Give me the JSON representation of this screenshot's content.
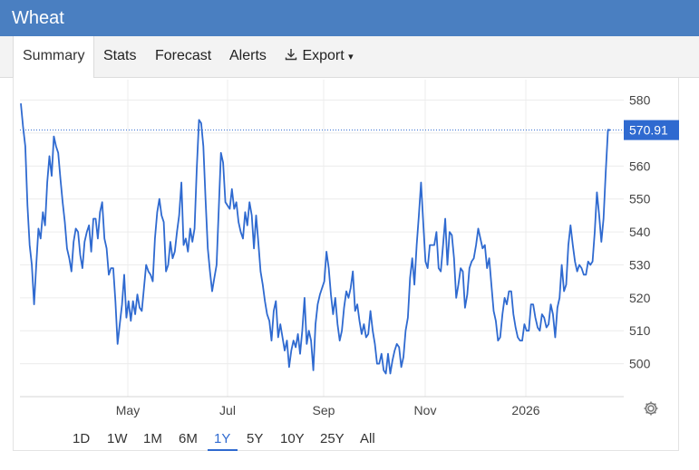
{
  "title": "Wheat",
  "tabs": [
    {
      "label": "Summary",
      "active": true
    },
    {
      "label": "Stats"
    },
    {
      "label": "Forecast"
    },
    {
      "label": "Alerts"
    },
    {
      "label": "Export",
      "icon": "download-icon",
      "caret": "▾"
    }
  ],
  "ranges": [
    "1D",
    "1W",
    "1M",
    "6M",
    "1Y",
    "5Y",
    "10Y",
    "25Y",
    "All"
  ],
  "selected_range": "1Y",
  "colors": {
    "accent": "#4a7fc1",
    "line": "#2f6ad0",
    "badge": "#2f6ad0"
  },
  "chart_data": {
    "type": "line",
    "x_ticks": [
      "May",
      "Jul",
      "Sep",
      "Nov",
      "2026"
    ],
    "y_ticks": [
      500,
      510,
      520,
      530,
      540,
      550,
      560,
      570,
      580
    ],
    "ylim": [
      490,
      584
    ],
    "current_value": "570.91",
    "grid": true,
    "series": [
      {
        "values": [
          579,
          572,
          566,
          548,
          536,
          530,
          518,
          530,
          541,
          538,
          546,
          542,
          555,
          563,
          557,
          569,
          566,
          564,
          556,
          549,
          543,
          535,
          532,
          528,
          537,
          541,
          540,
          533,
          529,
          537,
          540,
          542,
          534,
          544,
          544,
          538,
          546,
          549,
          538,
          535,
          527,
          529,
          529,
          519,
          506,
          512,
          518,
          527,
          514,
          519,
          513,
          519,
          515,
          521,
          517,
          516,
          523,
          530,
          528,
          527,
          525,
          538,
          546,
          550,
          545,
          543,
          528,
          530,
          537,
          532,
          534,
          540,
          545,
          555,
          536,
          538,
          534,
          541,
          537,
          541,
          559,
          574,
          573,
          566,
          550,
          535,
          528,
          522,
          526,
          530,
          547,
          564,
          561,
          549,
          548,
          547,
          553,
          547,
          549,
          543,
          540,
          538,
          546,
          542,
          549,
          545,
          535,
          545,
          537,
          528,
          524,
          519,
          515,
          513,
          507,
          516,
          519,
          508,
          512,
          508,
          504,
          507,
          499,
          504,
          507,
          505,
          509,
          503,
          510,
          520,
          506,
          510,
          507,
          498,
          512,
          518,
          521,
          523,
          525,
          534,
          529,
          521,
          515,
          520,
          512,
          507,
          510,
          517,
          522,
          520,
          523,
          528,
          516,
          518,
          513,
          509,
          512,
          508,
          509,
          516,
          510,
          506,
          500,
          500,
          503,
          498,
          497,
          503,
          497,
          501,
          504,
          506,
          505,
          499,
          502,
          510,
          514,
          526,
          532,
          524,
          536,
          545,
          555,
          543,
          531,
          529,
          536,
          536,
          536,
          540,
          529,
          528,
          536,
          544,
          530,
          540,
          539,
          532,
          520,
          524,
          529,
          528,
          517,
          521,
          529,
          531,
          532,
          536,
          541,
          538,
          535,
          536,
          529,
          532,
          524,
          516,
          513,
          507,
          508,
          515,
          520,
          518,
          522,
          522,
          515,
          511,
          508,
          507,
          507,
          512,
          510,
          510,
          518,
          518,
          514,
          511,
          510,
          515,
          514,
          511,
          512,
          518,
          515,
          508,
          517,
          520,
          530,
          522,
          524,
          536,
          542,
          536,
          531,
          528,
          530,
          529,
          527,
          527,
          531,
          530,
          531,
          540,
          552,
          545,
          537,
          544,
          558,
          571,
          570.9
        ]
      }
    ]
  }
}
